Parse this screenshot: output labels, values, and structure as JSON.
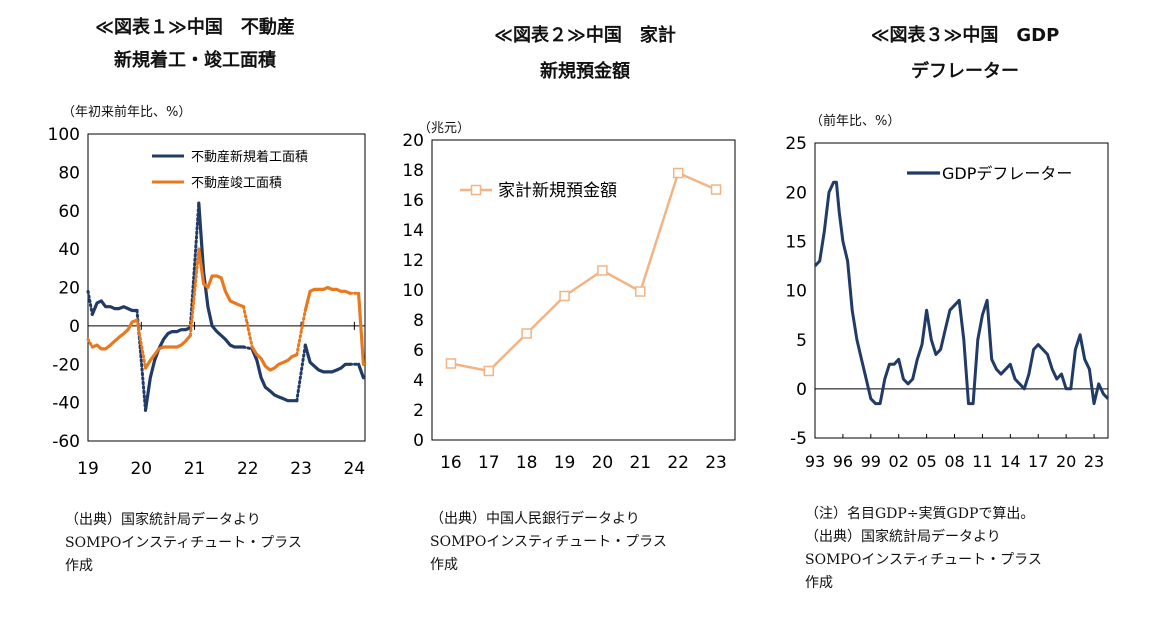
{
  "colors": {
    "navy": "#213a66",
    "orange": "#e8791e",
    "peach": "#f2b484",
    "frame": "#000000"
  },
  "panels": [
    {
      "title_line1": "≪図表１≫中国　不動産",
      "title_line2": "新規着工・竣工面積",
      "unit": "（年初来前年比、%）",
      "source_line1": "（出典）国家統計局データより",
      "source_line2": "SOMPOインスティチュート・プラス",
      "source_line3": "作成"
    },
    {
      "title_line1": "≪図表２≫中国　家計",
      "title_line2": "新規預金額",
      "unit": "（兆元）",
      "source_line1": "（出典）中国人民銀行データより",
      "source_line2": "SOMPOインスティチュート・プラス",
      "source_line3": "作成"
    },
    {
      "title_line1": "≪図表３≫中国　GDP",
      "title_line2": "デフレーター",
      "unit": "（前年比、%）",
      "note": "（注）名目GDP÷実質GDPで算出。",
      "source_line1": "（出典）国家統計局データより",
      "source_line2": "SOMPOインスティチュート・プラス",
      "source_line3": "作成"
    }
  ],
  "chart_data": [
    {
      "type": "line",
      "ylim": [
        -60,
        100
      ],
      "yticks": [
        -60,
        -40,
        -20,
        0,
        20,
        40,
        60,
        80,
        100
      ],
      "xlim": [
        2019,
        2024.2
      ],
      "xticks": [
        2019,
        2020,
        2021,
        2022,
        2023,
        2024
      ],
      "xticklabels": [
        "19",
        "20",
        "21",
        "22",
        "23",
        "24"
      ],
      "legend_position": "top-right",
      "series": [
        {
          "name": "不動産新規着工面積",
          "color": "#213a66",
          "x": [
            2019.08,
            2019.17,
            2019.25,
            2019.33,
            2019.42,
            2019.5,
            2019.58,
            2019.67,
            2019.75,
            2019.83,
            2019.92,
            null,
            2020.08,
            2020.17,
            2020.25,
            2020.33,
            2020.42,
            2020.5,
            2020.58,
            2020.67,
            2020.75,
            2020.83,
            2020.92,
            null,
            2021.08,
            2021.17,
            2021.25,
            2021.33,
            2021.42,
            2021.5,
            2021.58,
            2021.67,
            2021.75,
            2021.83,
            2021.92,
            null,
            2022.08,
            2022.17,
            2022.25,
            2022.33,
            2022.42,
            2022.5,
            2022.58,
            2022.67,
            2022.75,
            2022.83,
            2022.92,
            null,
            2023.08,
            2023.17,
            2023.25,
            2023.33,
            2023.42,
            2023.5,
            2023.58,
            2023.67,
            2023.75,
            2023.83,
            2023.92,
            null,
            2024.08,
            2024.17
          ],
          "y": [
            6,
            12,
            13,
            10,
            10,
            9,
            9,
            10,
            9,
            8,
            8,
            null,
            -44,
            -27,
            -18,
            -12,
            -7,
            -4,
            -3,
            -3,
            -2,
            -2,
            -1,
            null,
            64,
            28,
            10,
            0,
            -3,
            -5,
            -7,
            -10,
            -11,
            -11,
            -11,
            null,
            -12,
            -18,
            -27,
            -32,
            -34,
            -36,
            -37,
            -38,
            -39,
            -39,
            -39,
            null,
            -10,
            -19,
            -21,
            -23,
            -24,
            -24,
            -24,
            -23,
            -22,
            -20,
            -20,
            null,
            -20,
            -27
          ]
        },
        {
          "name": "不動産竣工面積",
          "color": "#e8791e",
          "x": [
            2019.08,
            2019.17,
            2019.25,
            2019.33,
            2019.42,
            2019.5,
            2019.58,
            2019.67,
            2019.75,
            2019.83,
            2019.92,
            null,
            2020.08,
            2020.17,
            2020.25,
            2020.33,
            2020.42,
            2020.5,
            2020.58,
            2020.67,
            2020.75,
            2020.83,
            2020.92,
            null,
            2021.08,
            2021.17,
            2021.25,
            2021.33,
            2021.42,
            2021.5,
            2021.58,
            2021.67,
            2021.75,
            2021.83,
            2021.92,
            null,
            2022.08,
            2022.17,
            2022.25,
            2022.33,
            2022.42,
            2022.5,
            2022.58,
            2022.67,
            2022.75,
            2022.83,
            2022.92,
            null,
            2023.08,
            2023.17,
            2023.25,
            2023.33,
            2023.42,
            2023.5,
            2023.58,
            2023.67,
            2023.75,
            2023.83,
            2023.92,
            null,
            2024.08,
            2024.17
          ],
          "y": [
            -11,
            -10,
            -12,
            -12,
            -10,
            -8,
            -6,
            -4,
            -2,
            2,
            3,
            null,
            -22,
            -18,
            -15,
            -12,
            -11,
            -11,
            -11,
            -11,
            -10,
            -8,
            -5,
            null,
            40,
            22,
            20,
            26,
            26,
            25,
            18,
            13,
            12,
            11,
            10,
            null,
            -11,
            -15,
            -17,
            -21,
            -23,
            -22,
            -20,
            -19,
            -18,
            -16,
            -15,
            null,
            8,
            18,
            19,
            19,
            19,
            20,
            19,
            19,
            18,
            18,
            17,
            null,
            17,
            -20
          ]
        },
        {
          "name": "",
          "style": "dotted",
          "color": "#213a66",
          "x": [
            2019.0,
            2019.08,
            null,
            2019.92,
            2020.08,
            null,
            2020.92,
            2021.08,
            null,
            2021.92,
            2022.08,
            null,
            2022.92,
            2023.08,
            null,
            2023.92,
            2024.08
          ],
          "y": [
            18,
            6,
            null,
            8,
            -44,
            null,
            -1,
            64,
            null,
            -11,
            -12,
            null,
            -39,
            -10,
            null,
            -20,
            -20
          ]
        },
        {
          "name": "",
          "style": "dotted",
          "color": "#e8791e",
          "x": [
            2019.0,
            2019.08,
            null,
            2019.92,
            2020.08,
            null,
            2020.92,
            2021.08,
            null,
            2021.92,
            2022.08,
            null,
            2022.92,
            2023.08,
            null,
            2023.92,
            2024.08
          ],
          "y": [
            -7,
            -11,
            null,
            3,
            -22,
            null,
            -5,
            40,
            null,
            10,
            -11,
            null,
            -15,
            8,
            null,
            17,
            17
          ]
        }
      ]
    },
    {
      "type": "line",
      "ylim": [
        0,
        20
      ],
      "yticks": [
        0,
        2,
        4,
        6,
        8,
        10,
        12,
        14,
        16,
        18,
        20
      ],
      "categories": [
        "16",
        "17",
        "18",
        "19",
        "20",
        "21",
        "22",
        "23"
      ],
      "legend_position": "top-left",
      "series": [
        {
          "name": "家計新規預金額",
          "color": "#f2b484",
          "values": [
            5.1,
            4.6,
            7.1,
            9.6,
            11.3,
            9.9,
            17.8,
            16.7
          ]
        }
      ]
    },
    {
      "type": "line",
      "ylim": [
        -5,
        25
      ],
      "yticks": [
        -5,
        0,
        5,
        10,
        15,
        20,
        25
      ],
      "xlim": [
        1993,
        2024.5
      ],
      "xticks": [
        1993,
        1996,
        1999,
        2002,
        2005,
        2008,
        2011,
        2014,
        2017,
        2020,
        2023
      ],
      "xticklabels": [
        "93",
        "96",
        "99",
        "02",
        "05",
        "08",
        "11",
        "14",
        "17",
        "20",
        "23"
      ],
      "legend_position": "top-right",
      "series": [
        {
          "name": "GDPデフレーター",
          "color": "#213a66",
          "x": [
            1993.0,
            1993.5,
            1994.0,
            1994.5,
            1995.0,
            1995.3,
            1995.6,
            1996.0,
            1996.5,
            1997.0,
            1997.5,
            1998.0,
            1998.5,
            1999.0,
            1999.5,
            2000.0,
            2000.5,
            2001.0,
            2001.5,
            2002.0,
            2002.5,
            2003.0,
            2003.5,
            2004.0,
            2004.5,
            2005.0,
            2005.5,
            2006.0,
            2006.5,
            2007.0,
            2007.5,
            2008.0,
            2008.5,
            2009.0,
            2009.5,
            2010.0,
            2010.5,
            2011.0,
            2011.5,
            2012.0,
            2012.5,
            2013.0,
            2013.5,
            2014.0,
            2014.5,
            2015.0,
            2015.5,
            2016.0,
            2016.5,
            2017.0,
            2017.5,
            2018.0,
            2018.5,
            2019.0,
            2019.5,
            2020.0,
            2020.5,
            2021.0,
            2021.5,
            2022.0,
            2022.5,
            2023.0,
            2023.5,
            2024.0,
            2024.5
          ],
          "y": [
            12.5,
            13,
            16,
            20,
            21,
            21,
            18,
            15,
            13,
            8,
            5,
            3,
            1,
            -1,
            -1.5,
            -1.5,
            1,
            2.5,
            2.5,
            3,
            1,
            0.5,
            1,
            3,
            4.5,
            8,
            5,
            3.5,
            4,
            6,
            8,
            8.5,
            9,
            5,
            -1.5,
            -1.5,
            5,
            7.5,
            9,
            3,
            2,
            1.5,
            2,
            2.5,
            1,
            0.5,
            0,
            1.5,
            4,
            4.5,
            4,
            3.5,
            2,
            1,
            1.5,
            0,
            0,
            4,
            5.5,
            3,
            2,
            -1.5,
            0.5,
            -0.5,
            -1
          ]
        }
      ]
    }
  ]
}
